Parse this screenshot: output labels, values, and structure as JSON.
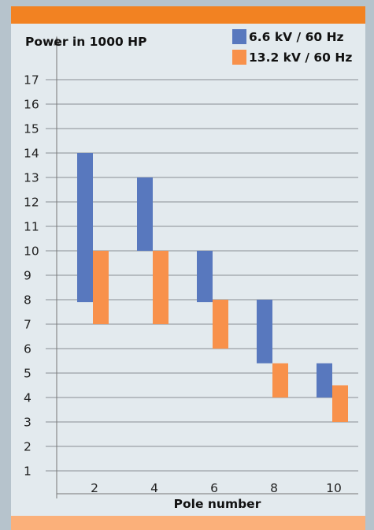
{
  "chart_data": {
    "type": "bar",
    "subtype": "floating-range",
    "ylabel": "Power in 1000 HP",
    "xlabel": "Pole number",
    "yticks": [
      1,
      2,
      3,
      4,
      5,
      6,
      7,
      8,
      9,
      10,
      11,
      12,
      13,
      14,
      15,
      16,
      17
    ],
    "ylim": [
      0,
      17.5
    ],
    "categories": [
      "2",
      "4",
      "6",
      "8",
      "10"
    ],
    "grid": true,
    "legend_position": "top-right",
    "series": [
      {
        "name": "6.6 kV / 60 Hz",
        "color": "#5878be",
        "ranges": [
          [
            7.9,
            14.0
          ],
          [
            10.0,
            13.0
          ],
          [
            7.9,
            10.0
          ],
          [
            5.4,
            8.0
          ],
          [
            4.0,
            5.4
          ]
        ]
      },
      {
        "name": "13.2 kV / 60 Hz",
        "color": "#f8914b",
        "ranges": [
          [
            7.0,
            10.0
          ],
          [
            7.0,
            10.0
          ],
          [
            6.0,
            8.0
          ],
          [
            4.0,
            5.4
          ],
          [
            3.0,
            4.5
          ]
        ]
      }
    ]
  }
}
